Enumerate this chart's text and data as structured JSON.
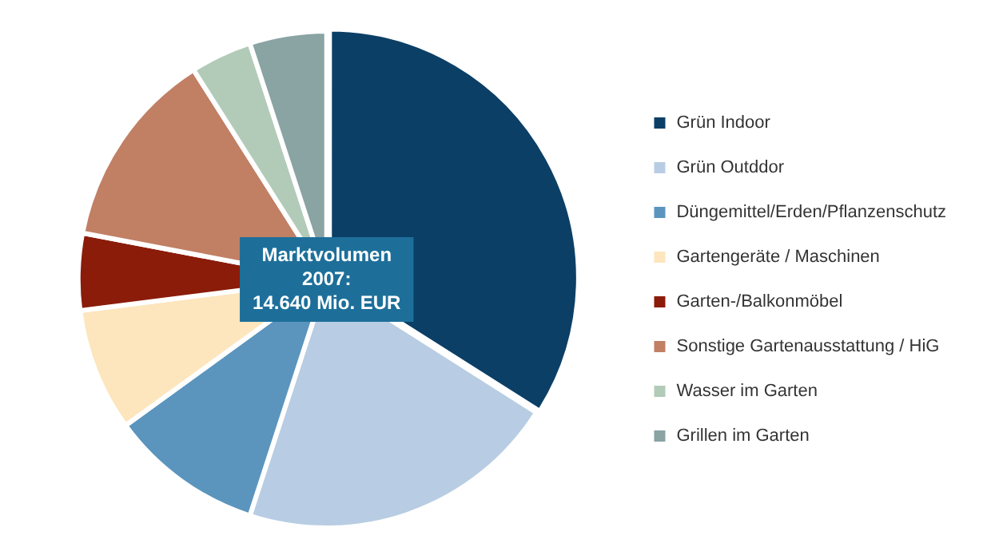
{
  "chart_data": {
    "type": "pie",
    "categories": [
      "Grün Indoor",
      "Grün Outddor",
      "Düngemittel/Erden/Pflanzenschutz",
      "Gartengeräte / Maschinen",
      "Garten-/Balkonmöbel",
      "Sonstige Gartenausstattung / HiG",
      "Wasser im Garten",
      "Grillen im Garten"
    ],
    "values": [
      34,
      21,
      10,
      8,
      5,
      13,
      4,
      5
    ],
    "colors": [
      "#0b3f66",
      "#b8cde3",
      "#5b95bd",
      "#fde6bd",
      "#8b1c0a",
      "#c17f64",
      "#b2cbb8",
      "#8aa3a3"
    ],
    "annotations": [
      "Marktvolumen\n2007:\n14.640 Mio. EUR"
    ],
    "legend": "right"
  }
}
